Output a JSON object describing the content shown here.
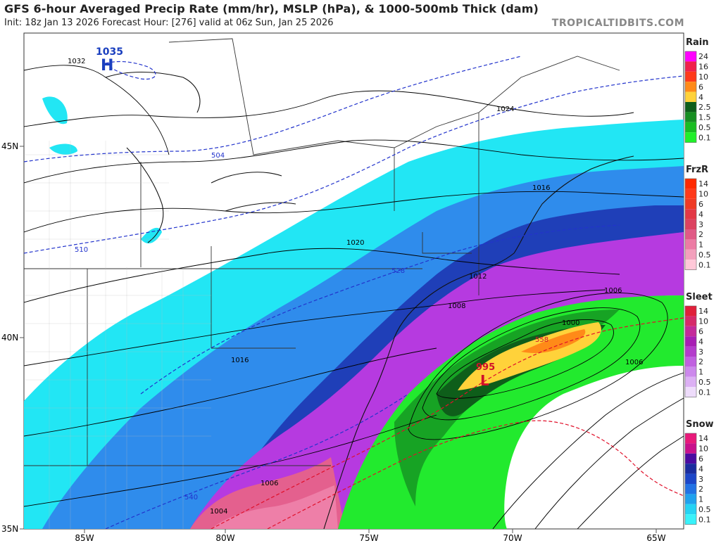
{
  "header": {
    "title": "GFS 6-hour Averaged Precip Rate (mm/hr), MSLP (hPa), & 1000-500mb Thick (dam)",
    "subtitle": "Init: 18z Jan 13 2026   Forecast Hour: [276]   valid at 06z Sun, Jan 25 2026",
    "brand": "TROPICALTIDBITS.COM"
  },
  "axes": {
    "lon_labels": [
      "85W",
      "80W",
      "75W",
      "70W",
      "65W"
    ],
    "lat_labels": [
      "45N",
      "40N",
      "35N"
    ]
  },
  "pressure_centers": [
    {
      "type": "H",
      "value": "1035",
      "color": "#1a3fbf"
    },
    {
      "type": "L",
      "value": "995",
      "color": "#d0102a"
    }
  ],
  "isobar_labels": [
    "1032",
    "1024",
    "1020",
    "1016",
    "1012",
    "1008",
    "1006",
    "1004",
    "1000",
    "1006",
    "1016",
    "1006"
  ],
  "thickness_labels": [
    "504",
    "510",
    "528",
    "540",
    "558"
  ],
  "legends": [
    {
      "title": "Rain",
      "ticks": [
        "24",
        "16",
        "10",
        "6",
        "4",
        "2.5",
        "1.5",
        "0.5",
        "0.1"
      ],
      "colors": [
        "#ff00ff",
        "#f0204b",
        "#ff3a1a",
        "#ff8a18",
        "#ffd23a",
        "#0e5e1a",
        "#178f22",
        "#19bd22",
        "#20f02a"
      ]
    },
    {
      "title": "FrzR",
      "ticks": [
        "14",
        "10",
        "6",
        "4",
        "3",
        "2",
        "1",
        "0.5",
        "0.1"
      ],
      "colors": [
        "#ff2a00",
        "#ff3a1a",
        "#ef3a24",
        "#e33845",
        "#dc4260",
        "#e05a86",
        "#ec7ca4",
        "#f3a0bc",
        "#ffc8d8"
      ]
    },
    {
      "title": "Sleet",
      "ticks": [
        "14",
        "10",
        "6",
        "4",
        "3",
        "2",
        "1",
        "0.5",
        "0.1"
      ],
      "colors": [
        "#e0203a",
        "#d62a6a",
        "#c42a9a",
        "#a81eb4",
        "#b43ccc",
        "#c060e0",
        "#cc88ec",
        "#dcb0f4",
        "#eedcfb"
      ]
    },
    {
      "title": "Snow",
      "ticks": [
        "14",
        "10",
        "6",
        "4",
        "3",
        "2",
        "1",
        "0.5",
        "0.1"
      ],
      "colors": [
        "#e8197a",
        "#c8108c",
        "#4a0aa0",
        "#1a2c9e",
        "#1c46c8",
        "#2272e4",
        "#20a2ee",
        "#25d3f4",
        "#38f2fa"
      ]
    }
  ]
}
